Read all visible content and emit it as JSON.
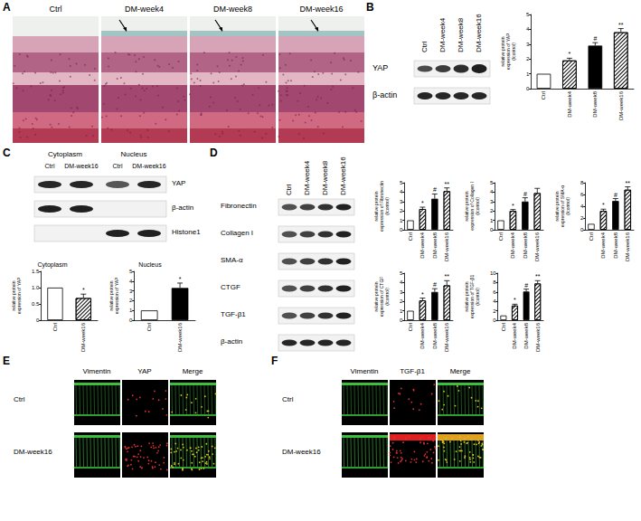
{
  "figure": {
    "A": {
      "label": "A",
      "images": [
        "Ctrl",
        "DM-week4",
        "DM-week8",
        "DM-week16"
      ]
    },
    "B": {
      "label": "B",
      "columns": [
        "Ctrl",
        "DM-week4",
        "DM-week8",
        "DM-week16"
      ],
      "rows": [
        "YAP",
        "β-actin"
      ]
    },
    "C": {
      "label": "C",
      "groups": [
        "Cytoplasm",
        "Nucleus"
      ],
      "columns": [
        "Ctrl",
        "DM-week16",
        "Ctrl",
        "DM-week16"
      ],
      "rows": [
        "YAP",
        "β-actin",
        "Histone1"
      ]
    },
    "D": {
      "label": "D",
      "columns": [
        "Ctrl",
        "DM-week4",
        "DM-week8",
        "DM-week16"
      ],
      "rows": [
        "Fibronectin",
        "Collagen I",
        "SMA-α",
        "CTGF",
        "TGF-β1",
        "β-actin"
      ]
    },
    "E": {
      "label": "E",
      "columns": [
        "Vimentin",
        "YAP",
        "Merge"
      ],
      "rows": [
        "Ctrl",
        "DM-week16"
      ]
    },
    "F": {
      "label": "F",
      "columns": [
        "Vimentin",
        "TGF-β1",
        "Merge"
      ],
      "rows": [
        "Ctrl",
        "DM-week16"
      ]
    }
  },
  "chart_data": [
    {
      "type": "bar",
      "categories": [
        "Ctrl",
        "DM-week4",
        "DM-week8",
        "DM-week16"
      ],
      "values": [
        1,
        1.9,
        2.9,
        3.8
      ],
      "errors": [
        0,
        0.15,
        0.2,
        0.25
      ],
      "colors": [
        "#ffffff",
        "#ffffff",
        "#000000",
        "#ffffff"
      ],
      "annotations": [
        {
          "category": "DM-week4",
          "text": "*"
        },
        {
          "category": "DM-week8",
          "text": "#"
        },
        {
          "category": "DM-week16",
          "text": "**"
        }
      ],
      "ylabel": "relative protein\nexpression of YAP\n(/control)",
      "ylim": [
        0,
        5
      ],
      "yticks": [
        0,
        1,
        2,
        3,
        4,
        5
      ],
      "grid": false
    },
    {
      "type": "bar",
      "title": "Cytoplasm",
      "categories": [
        "Ctrl",
        "DM-week16"
      ],
      "values": [
        1,
        0.68
      ],
      "errors": [
        0,
        0.12
      ],
      "colors": [
        "#ffffff",
        "#ffffff"
      ],
      "annotations": [
        {
          "category": "DM-week16",
          "text": "*"
        }
      ],
      "ylabel": "relative protein\nexpression of YAP",
      "ylim": [
        0,
        1.5
      ],
      "yticks": [
        0,
        0.5,
        {
          "value": 1,
          "label": "1.0"
        },
        1.5
      ],
      "grid": false
    },
    {
      "type": "bar",
      "title": "Nucleus",
      "categories": [
        "Ctrl",
        "DM-week16"
      ],
      "values": [
        1,
        3.3
      ],
      "errors": [
        0,
        0.5
      ],
      "colors": [
        "#ffffff",
        "#000000"
      ],
      "annotations": [
        {
          "category": "DM-week16",
          "text": "*"
        }
      ],
      "ylabel": "relative protein\nexpression of YAP",
      "ylim": [
        0,
        5
      ],
      "yticks": [
        0,
        1,
        2,
        3,
        4,
        5
      ],
      "grid": false
    },
    {
      "type": "bar",
      "categories": [
        "Ctrl",
        "DM-week4",
        "DM-week8",
        "DM-week16"
      ],
      "values": [
        1,
        2.2,
        3.3,
        4.1
      ],
      "errors": [
        0,
        0.2,
        0.5,
        0.35
      ],
      "colors": [
        "#ffffff",
        "#ffffff",
        "#000000",
        "#ffffff"
      ],
      "annotations": [
        {
          "category": "DM-week4",
          "text": "*"
        },
        {
          "category": "DM-week8",
          "text": "#"
        },
        {
          "category": "DM-week16",
          "text": "**"
        }
      ],
      "ylabel": "relative protein\nexpression of Fibronectin\n(/control)",
      "ylim": [
        0,
        5
      ],
      "yticks": [
        0,
        1,
        2,
        3,
        4,
        5
      ],
      "grid": false
    },
    {
      "type": "bar",
      "categories": [
        "Ctrl",
        "DM-week4",
        "DM-week8",
        "DM-week16"
      ],
      "values": [
        1,
        2.0,
        3.0,
        3.9
      ],
      "errors": [
        0,
        0.15,
        0.4,
        0.5
      ],
      "colors": [
        "#ffffff",
        "#ffffff",
        "#000000",
        "#ffffff"
      ],
      "annotations": [
        {
          "category": "DM-week4",
          "text": "*"
        },
        {
          "category": "DM-week8",
          "text": "#"
        }
      ],
      "ylabel": "relative protein\nexpression of Collagen I\n(/control)",
      "ylim": [
        0,
        5
      ],
      "yticks": [
        0,
        1,
        2,
        3,
        4,
        5
      ],
      "grid": false
    },
    {
      "type": "bar",
      "categories": [
        "Ctrl",
        "DM-week4",
        "DM-week8",
        "DM-week16"
      ],
      "values": [
        1,
        3.2,
        4.9,
        6.8
      ],
      "errors": [
        0,
        0.3,
        0.4,
        0.5
      ],
      "colors": [
        "#ffffff",
        "#ffffff",
        "#000000",
        "#ffffff"
      ],
      "annotations": [
        {
          "category": "DM-week4",
          "text": "*"
        },
        {
          "category": "DM-week8",
          "text": "#"
        },
        {
          "category": "DM-week16",
          "text": "**"
        }
      ],
      "ylabel": "relative protein\nexpression of SMA-α\n(/control)",
      "ylim": [
        0,
        8
      ],
      "yticks": [
        0,
        2,
        4,
        6,
        8
      ],
      "grid": false
    },
    {
      "type": "bar",
      "categories": [
        "Ctrl",
        "DM-week4",
        "DM-week8",
        "DM-week16"
      ],
      "values": [
        1,
        2.1,
        3.0,
        3.7
      ],
      "errors": [
        0,
        0.25,
        0.35,
        0.5
      ],
      "colors": [
        "#ffffff",
        "#ffffff",
        "#000000",
        "#ffffff"
      ],
      "annotations": [
        {
          "category": "DM-week4",
          "text": "*"
        },
        {
          "category": "DM-week8",
          "text": "#"
        },
        {
          "category": "DM-week16",
          "text": "**"
        }
      ],
      "ylabel": "relative protein\nexpression of CTGF\n(/control)",
      "ylim": [
        0,
        5
      ],
      "yticks": [
        0,
        1,
        2,
        3,
        4,
        5
      ],
      "grid": false
    },
    {
      "type": "bar",
      "categories": [
        "Ctrl",
        "DM-week4",
        "DM-week8",
        "DM-week16"
      ],
      "values": [
        1,
        3.1,
        6.1,
        7.8
      ],
      "errors": [
        0,
        0.3,
        0.5,
        0.6
      ],
      "colors": [
        "#ffffff",
        "#ffffff",
        "#000000",
        "#ffffff"
      ],
      "annotations": [
        {
          "category": "DM-week4",
          "text": "*"
        },
        {
          "category": "DM-week8",
          "text": "#"
        },
        {
          "category": "DM-week16",
          "text": "**"
        }
      ],
      "ylabel": "relative protein\nexpression of TGF-β1\n(/control)",
      "ylim": [
        0,
        10
      ],
      "yticks": [
        0,
        2,
        4,
        6,
        8,
        10
      ],
      "grid": false
    }
  ]
}
